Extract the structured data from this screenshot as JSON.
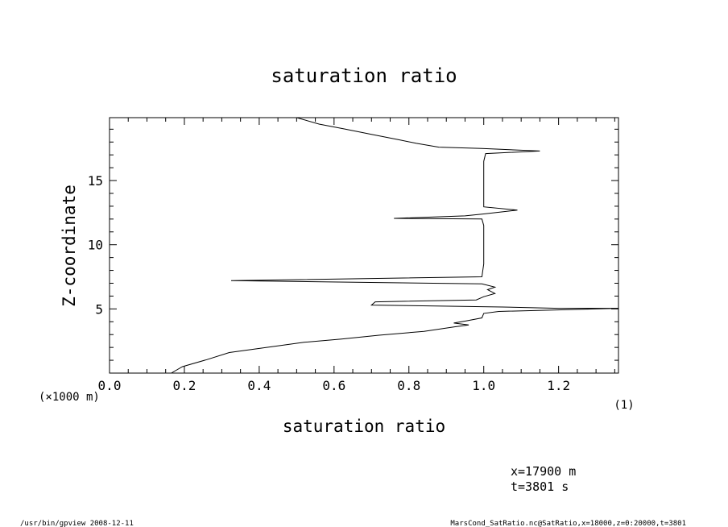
{
  "chart_data": {
    "type": "line",
    "title": "saturation ratio",
    "xlabel": "saturation ratio",
    "x_unit": "(1)",
    "ylabel": "Z-coordinate",
    "y_unit": "(×1000 m)",
    "xlim": [
      0.0,
      1.36
    ],
    "ylim": [
      0.0,
      19.9
    ],
    "x_ticks": [
      "0.0",
      "0.2",
      "0.4",
      "0.6",
      "0.8",
      "1.0",
      "1.2"
    ],
    "y_ticks": [
      "5",
      "10",
      "15"
    ],
    "grid": false,
    "series": [
      {
        "color": "#000000",
        "points": [
          [
            0.165,
            0.0
          ],
          [
            0.195,
            0.5
          ],
          [
            0.26,
            1.05
          ],
          [
            0.32,
            1.6
          ],
          [
            0.42,
            2.0
          ],
          [
            0.52,
            2.4
          ],
          [
            0.62,
            2.65
          ],
          [
            0.72,
            2.95
          ],
          [
            0.84,
            3.25
          ],
          [
            0.92,
            3.6
          ],
          [
            0.96,
            3.75
          ],
          [
            0.92,
            3.9
          ],
          [
            0.95,
            4.05
          ],
          [
            0.995,
            4.3
          ],
          [
            1.0,
            4.65
          ],
          [
            1.04,
            4.8
          ],
          [
            1.36,
            5.05
          ],
          [
            1.2,
            5.05
          ],
          [
            1.05,
            5.15
          ],
          [
            0.7,
            5.3
          ],
          [
            0.71,
            5.55
          ],
          [
            0.98,
            5.7
          ],
          [
            1.0,
            5.95
          ],
          [
            1.03,
            6.2
          ],
          [
            1.01,
            6.5
          ],
          [
            1.03,
            6.7
          ],
          [
            0.995,
            6.95
          ],
          [
            0.74,
            7.05
          ],
          [
            0.325,
            7.2
          ],
          [
            0.995,
            7.5
          ],
          [
            1.0,
            8.5
          ],
          [
            1.0,
            9.5
          ],
          [
            1.0,
            10.5
          ],
          [
            1.0,
            11.5
          ],
          [
            0.995,
            12.0
          ],
          [
            0.76,
            12.05
          ],
          [
            0.95,
            12.25
          ],
          [
            1.0,
            12.4
          ],
          [
            1.09,
            12.7
          ],
          [
            1.0,
            12.95
          ],
          [
            1.0,
            14.5
          ],
          [
            1.0,
            16.5
          ],
          [
            1.005,
            17.1
          ],
          [
            1.15,
            17.3
          ],
          [
            0.995,
            17.5
          ],
          [
            0.88,
            17.6
          ],
          [
            0.82,
            17.9
          ],
          [
            0.77,
            18.2
          ],
          [
            0.7,
            18.6
          ],
          [
            0.63,
            19.0
          ],
          [
            0.56,
            19.4
          ],
          [
            0.5,
            19.9
          ]
        ]
      }
    ]
  },
  "annotations": {
    "position_x": "x=17900  m",
    "time": "t=3801  s"
  },
  "footer": {
    "left": "/usr/bin/gpview   2008-12-11",
    "right": "MarsCond_SatRatio.nc@SatRatio,x=18000,z=0:20000,t=3801"
  }
}
